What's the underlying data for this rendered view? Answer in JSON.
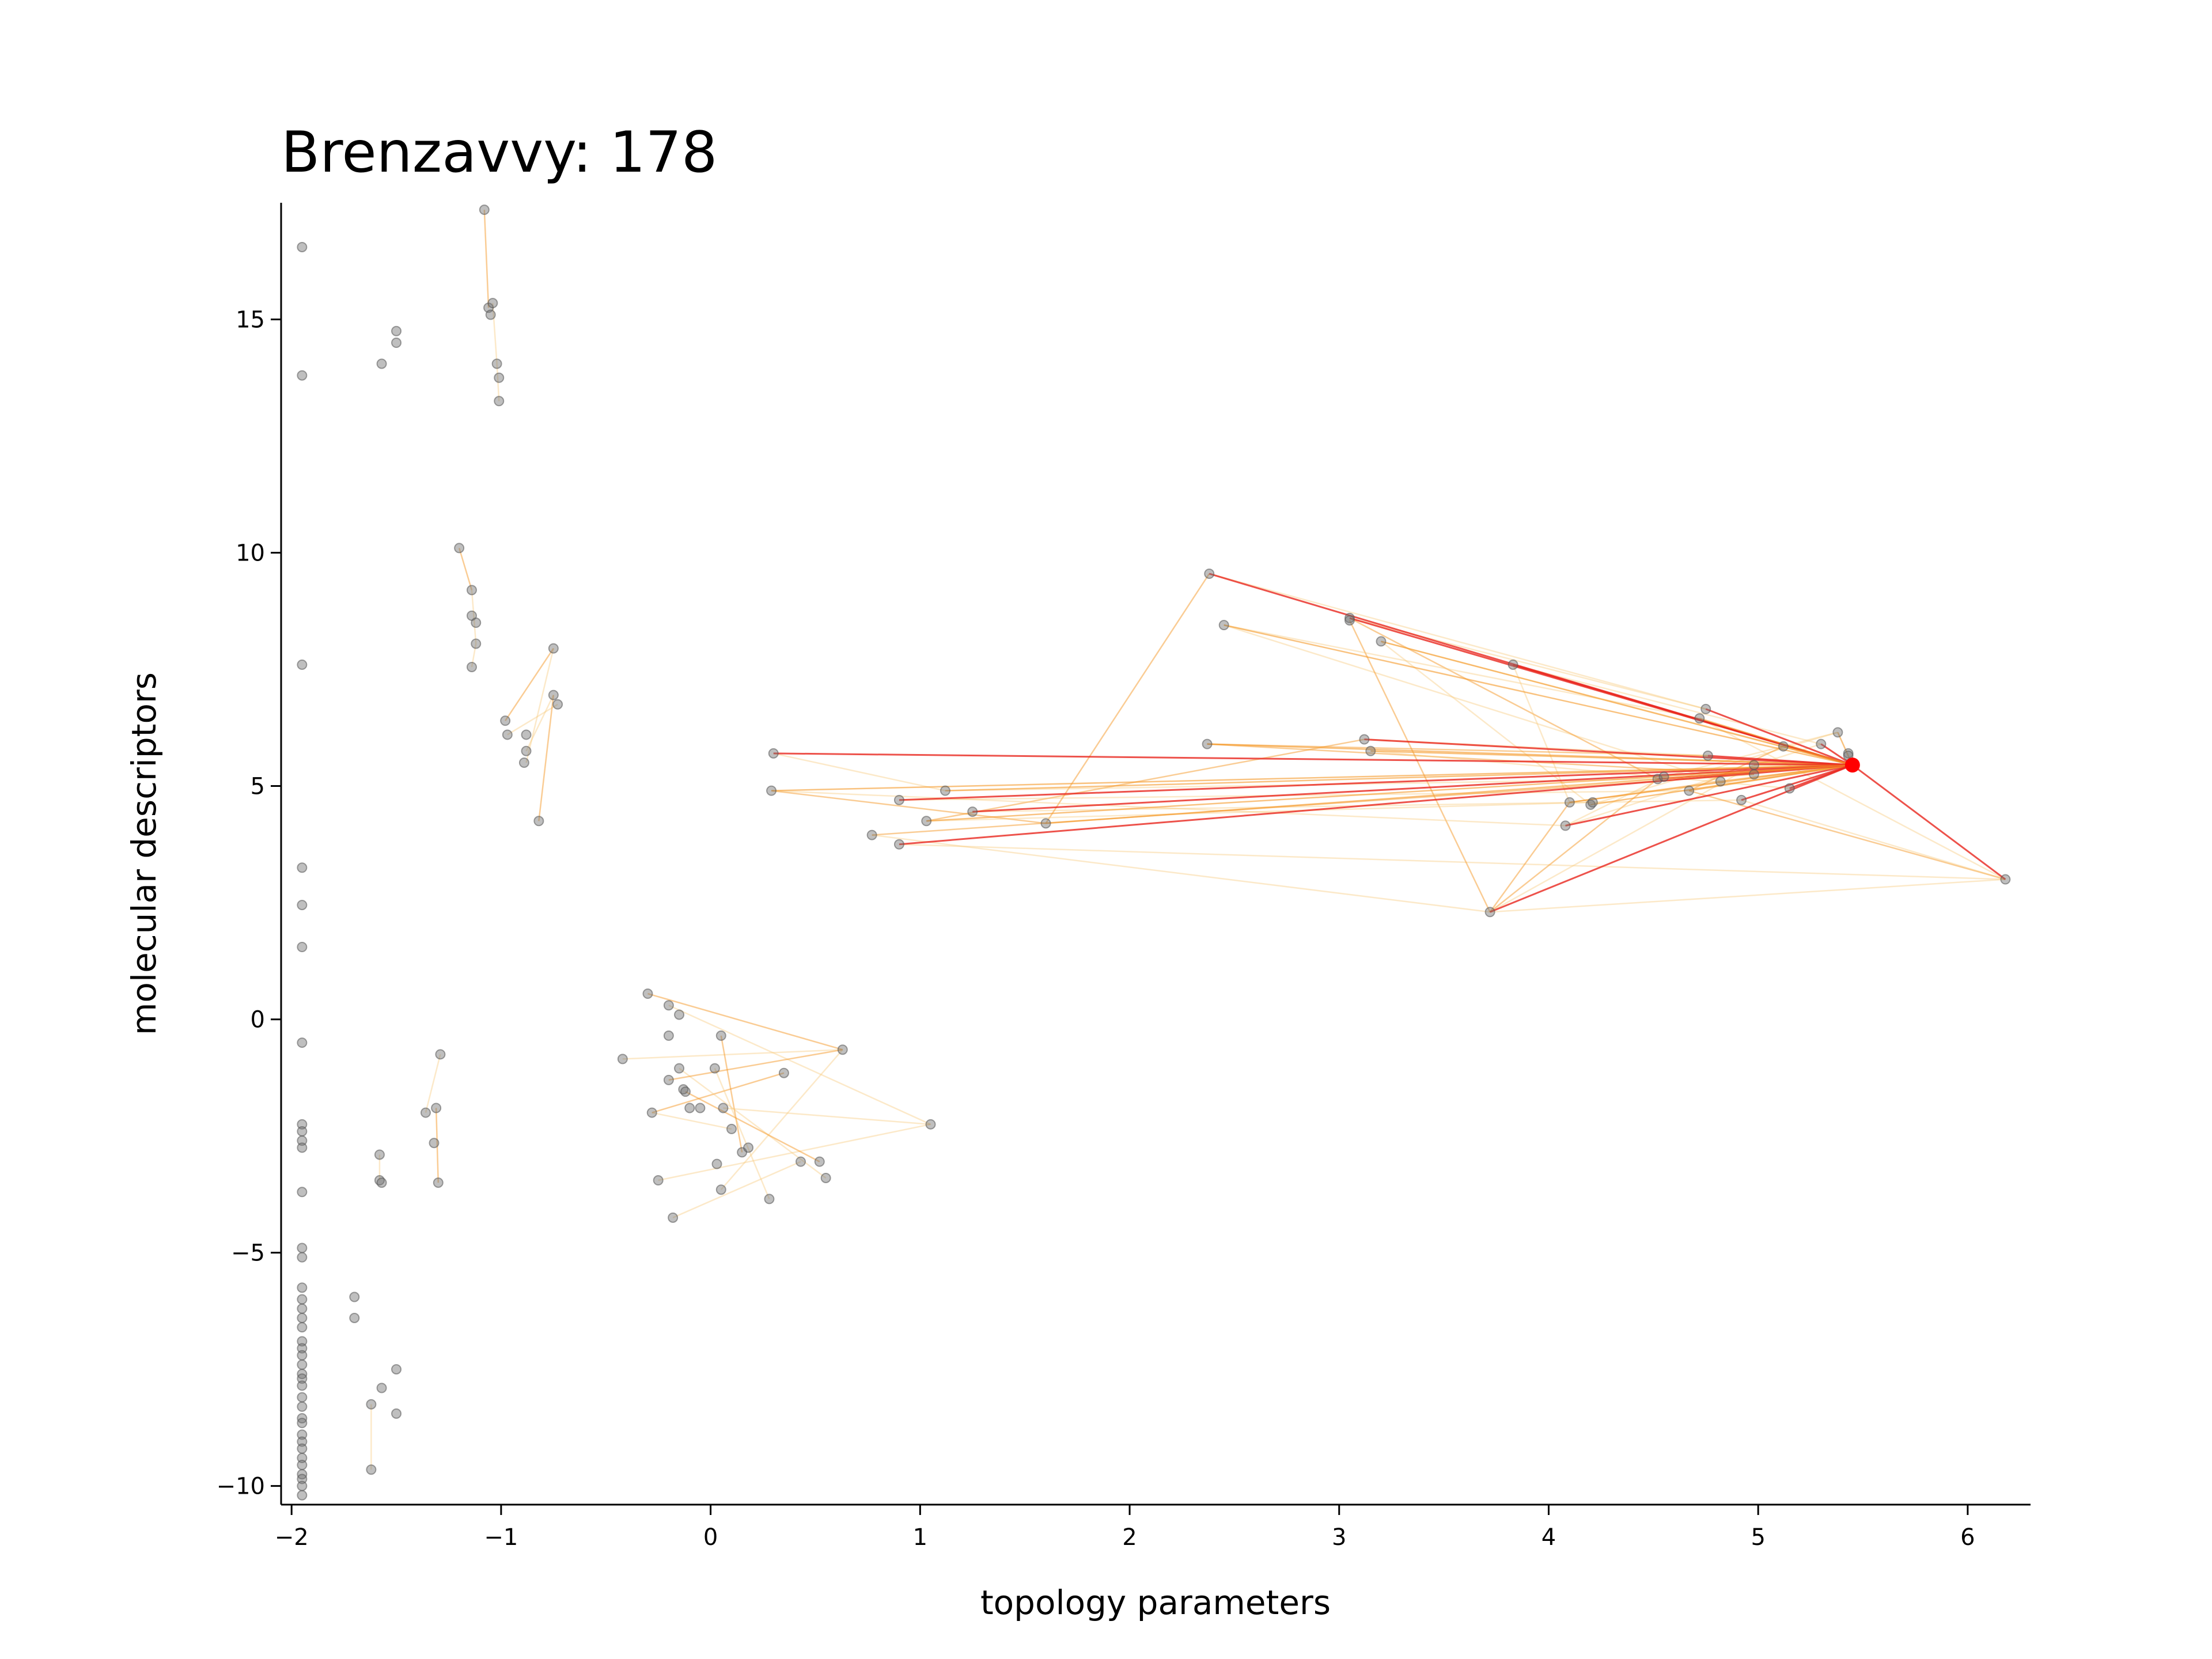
{
  "chart_data": {
    "type": "scatter",
    "title": "Brenzavvy: 178",
    "xlabel": "topology parameters",
    "ylabel": "molecular descriptors",
    "xlim": [
      -2.05,
      6.3
    ],
    "ylim": [
      -10.4,
      17.5
    ],
    "xticks": [
      {
        "value": -2,
        "label": "−2"
      },
      {
        "value": -1,
        "label": "−1"
      },
      {
        "value": 0,
        "label": "0"
      },
      {
        "value": 1,
        "label": "1"
      },
      {
        "value": 2,
        "label": "2"
      },
      {
        "value": 3,
        "label": "3"
      },
      {
        "value": 4,
        "label": "4"
      },
      {
        "value": 5,
        "label": "5"
      },
      {
        "value": 6,
        "label": "6"
      }
    ],
    "yticks": [
      {
        "value": -10,
        "label": "−10"
      },
      {
        "value": -5,
        "label": "−5"
      },
      {
        "value": 0,
        "label": "0"
      },
      {
        "value": 5,
        "label": "5"
      },
      {
        "value": 10,
        "label": "10"
      },
      {
        "value": 15,
        "label": "15"
      }
    ],
    "grid": false,
    "colors": {
      "point": "#707070",
      "highlight": "#ff0000",
      "edge_strong": "#e8271e",
      "edge_mid": "#f59a2a",
      "edge_weak": "#f7c878"
    },
    "highlight": {
      "x": 5.45,
      "y": 5.45
    },
    "points": [
      [
        -1.95,
        16.55
      ],
      [
        -1.95,
        13.8
      ],
      [
        -1.95,
        7.6
      ],
      [
        -1.95,
        3.25
      ],
      [
        -1.95,
        2.45
      ],
      [
        -1.95,
        1.55
      ],
      [
        -1.95,
        -0.5
      ],
      [
        -1.95,
        -2.25
      ],
      [
        -1.95,
        -2.4
      ],
      [
        -1.95,
        -2.6
      ],
      [
        -1.95,
        -2.75
      ],
      [
        -1.95,
        -3.7
      ],
      [
        -1.95,
        -4.9
      ],
      [
        -1.95,
        -5.1
      ],
      [
        -1.95,
        -5.75
      ],
      [
        -1.95,
        -6.0
      ],
      [
        -1.95,
        -6.2
      ],
      [
        -1.95,
        -6.4
      ],
      [
        -1.95,
        -6.6
      ],
      [
        -1.95,
        -6.9
      ],
      [
        -1.95,
        -7.05
      ],
      [
        -1.95,
        -7.2
      ],
      [
        -1.95,
        -7.4
      ],
      [
        -1.95,
        -7.6
      ],
      [
        -1.95,
        -7.7
      ],
      [
        -1.95,
        -7.85
      ],
      [
        -1.95,
        -8.1
      ],
      [
        -1.95,
        -8.3
      ],
      [
        -1.95,
        -8.55
      ],
      [
        -1.95,
        -8.65
      ],
      [
        -1.95,
        -8.9
      ],
      [
        -1.95,
        -9.05
      ],
      [
        -1.95,
        -9.2
      ],
      [
        -1.95,
        -9.4
      ],
      [
        -1.95,
        -9.55
      ],
      [
        -1.95,
        -9.75
      ],
      [
        -1.95,
        -9.85
      ],
      [
        -1.95,
        -10.0
      ],
      [
        -1.95,
        -10.2
      ],
      [
        -1.57,
        14.05
      ],
      [
        -1.5,
        14.5
      ],
      [
        -1.5,
        14.75
      ],
      [
        -1.08,
        17.35
      ],
      [
        -1.06,
        15.25
      ],
      [
        -1.04,
        15.35
      ],
      [
        -1.05,
        15.1
      ],
      [
        -1.02,
        14.05
      ],
      [
        -1.01,
        13.75
      ],
      [
        -1.01,
        13.25
      ],
      [
        -1.2,
        10.1
      ],
      [
        -1.14,
        9.2
      ],
      [
        -1.14,
        8.65
      ],
      [
        -1.12,
        8.5
      ],
      [
        -1.12,
        8.05
      ],
      [
        -1.14,
        7.55
      ],
      [
        -0.98,
        6.4
      ],
      [
        -0.97,
        6.1
      ],
      [
        -0.88,
        6.1
      ],
      [
        -0.88,
        5.75
      ],
      [
        -0.89,
        5.5
      ],
      [
        -0.75,
        7.95
      ],
      [
        -0.75,
        6.95
      ],
      [
        -0.73,
        6.75
      ],
      [
        -0.82,
        4.25
      ],
      [
        -1.29,
        -0.75
      ],
      [
        -1.31,
        -1.9
      ],
      [
        -1.36,
        -2.0
      ],
      [
        -1.32,
        -2.65
      ],
      [
        -1.3,
        -3.5
      ],
      [
        -1.58,
        -2.9
      ],
      [
        -1.58,
        -3.45
      ],
      [
        -1.57,
        -3.5
      ],
      [
        -1.7,
        -5.95
      ],
      [
        -1.7,
        -6.4
      ],
      [
        -1.5,
        -7.5
      ],
      [
        -1.57,
        -7.9
      ],
      [
        -1.62,
        -8.25
      ],
      [
        -1.5,
        -8.45
      ],
      [
        -1.62,
        -9.65
      ],
      [
        -0.3,
        0.55
      ],
      [
        -0.2,
        0.3
      ],
      [
        -0.15,
        0.1
      ],
      [
        -0.2,
        -0.35
      ],
      [
        0.05,
        -0.35
      ],
      [
        -0.42,
        -0.85
      ],
      [
        -0.15,
        -1.05
      ],
      [
        0.02,
        -1.05
      ],
      [
        -0.2,
        -1.3
      ],
      [
        -0.13,
        -1.5
      ],
      [
        -0.12,
        -1.55
      ],
      [
        -0.28,
        -2.0
      ],
      [
        -0.1,
        -1.9
      ],
      [
        -0.05,
        -1.9
      ],
      [
        0.06,
        -1.9
      ],
      [
        0.1,
        -2.35
      ],
      [
        0.15,
        -2.85
      ],
      [
        0.18,
        -2.75
      ],
      [
        0.03,
        -3.1
      ],
      [
        0.43,
        -3.05
      ],
      [
        0.52,
        -3.05
      ],
      [
        0.55,
        -3.4
      ],
      [
        0.05,
        -3.65
      ],
      [
        0.28,
        -3.85
      ],
      [
        -0.25,
        -3.45
      ],
      [
        -0.18,
        -4.25
      ],
      [
        0.35,
        -1.15
      ],
      [
        0.63,
        -0.65
      ],
      [
        1.05,
        -2.25
      ],
      [
        0.3,
        5.7
      ],
      [
        0.29,
        4.9
      ],
      [
        0.9,
        4.7
      ],
      [
        1.12,
        4.9
      ],
      [
        1.25,
        4.45
      ],
      [
        1.03,
        4.25
      ],
      [
        0.77,
        3.95
      ],
      [
        0.9,
        3.75
      ],
      [
        1.6,
        4.2
      ],
      [
        2.38,
        9.55
      ],
      [
        2.45,
        8.45
      ],
      [
        3.05,
        8.6
      ],
      [
        3.05,
        8.55
      ],
      [
        3.2,
        8.1
      ],
      [
        3.83,
        7.6
      ],
      [
        2.37,
        5.9
      ],
      [
        3.12,
        6.0
      ],
      [
        3.15,
        5.75
      ],
      [
        3.72,
        2.3
      ],
      [
        4.1,
        4.65
      ],
      [
        4.08,
        4.15
      ],
      [
        4.2,
        4.6
      ],
      [
        4.21,
        4.65
      ],
      [
        4.52,
        5.15
      ],
      [
        4.55,
        5.2
      ],
      [
        4.67,
        4.9
      ],
      [
        4.75,
        6.65
      ],
      [
        4.72,
        6.45
      ],
      [
        4.76,
        5.65
      ],
      [
        4.82,
        5.1
      ],
      [
        4.92,
        4.7
      ],
      [
        4.98,
        5.45
      ],
      [
        4.98,
        5.25
      ],
      [
        5.15,
        4.95
      ],
      [
        5.12,
        5.85
      ],
      [
        5.3,
        5.9
      ],
      [
        5.38,
        6.15
      ],
      [
        5.43,
        5.7
      ],
      [
        5.43,
        5.65
      ],
      [
        6.18,
        3.0
      ]
    ],
    "edges_from_highlight": [
      [
        2.38,
        9.55
      ],
      [
        2.45,
        8.45
      ],
      [
        3.05,
        8.6
      ],
      [
        3.2,
        8.1
      ],
      [
        3.83,
        7.6
      ],
      [
        2.37,
        5.9
      ],
      [
        3.12,
        6.0
      ],
      [
        3.15,
        5.75
      ],
      [
        3.72,
        2.3
      ],
      [
        4.1,
        4.65
      ],
      [
        4.08,
        4.15
      ],
      [
        4.2,
        4.6
      ],
      [
        4.52,
        5.15
      ],
      [
        4.67,
        4.9
      ],
      [
        4.75,
        6.65
      ],
      [
        4.72,
        6.45
      ],
      [
        4.76,
        5.65
      ],
      [
        4.82,
        5.1
      ],
      [
        4.92,
        4.7
      ],
      [
        4.98,
        5.45
      ],
      [
        5.15,
        4.95
      ],
      [
        5.12,
        5.85
      ],
      [
        5.3,
        5.9
      ],
      [
        5.38,
        6.15
      ],
      [
        0.3,
        5.7
      ],
      [
        0.29,
        4.9
      ],
      [
        0.9,
        4.7
      ],
      [
        1.12,
        4.9
      ],
      [
        1.25,
        4.45
      ],
      [
        1.03,
        4.25
      ],
      [
        0.9,
        3.75
      ],
      [
        1.6,
        4.2
      ],
      [
        6.18,
        3.0
      ]
    ],
    "edges_other": [
      [
        [
          -1.08,
          17.35
        ],
        [
          -1.06,
          15.25
        ]
      ],
      [
        [
          -1.04,
          15.35
        ],
        [
          -1.02,
          14.05
        ]
      ],
      [
        [
          -1.02,
          14.05
        ],
        [
          -1.01,
          13.25
        ]
      ],
      [
        [
          -1.2,
          10.1
        ],
        [
          -1.14,
          9.2
        ]
      ],
      [
        [
          -1.14,
          9.2
        ],
        [
          -1.12,
          8.05
        ]
      ],
      [
        [
          -1.12,
          8.05
        ],
        [
          -1.14,
          7.55
        ]
      ],
      [
        [
          -0.98,
          6.4
        ],
        [
          -0.75,
          7.95
        ]
      ],
      [
        [
          -0.88,
          5.5
        ],
        [
          -0.75,
          7.95
        ]
      ],
      [
        [
          -0.97,
          6.1
        ],
        [
          -0.73,
          6.75
        ]
      ],
      [
        [
          -0.82,
          4.25
        ],
        [
          -0.75,
          6.95
        ]
      ],
      [
        [
          -0.88,
          5.75
        ],
        [
          -0.75,
          6.95
        ]
      ],
      [
        [
          -1.29,
          -0.75
        ],
        [
          -1.36,
          -2.0
        ]
      ],
      [
        [
          -1.31,
          -1.9
        ],
        [
          -1.3,
          -3.5
        ]
      ],
      [
        [
          -1.58,
          -2.9
        ],
        [
          -1.58,
          -3.45
        ]
      ],
      [
        [
          -1.62,
          -8.25
        ],
        [
          -1.62,
          -9.65
        ]
      ],
      [
        [
          -0.3,
          0.55
        ],
        [
          0.63,
          -0.65
        ]
      ],
      [
        [
          -0.2,
          0.3
        ],
        [
          1.05,
          -2.25
        ]
      ],
      [
        [
          -0.42,
          -0.85
        ],
        [
          0.63,
          -0.65
        ]
      ],
      [
        [
          -0.28,
          -2.0
        ],
        [
          0.35,
          -1.15
        ]
      ],
      [
        [
          -0.25,
          -3.45
        ],
        [
          1.05,
          -2.25
        ]
      ],
      [
        [
          -0.18,
          -4.25
        ],
        [
          0.43,
          -3.05
        ]
      ],
      [
        [
          0.05,
          -0.35
        ],
        [
          0.15,
          -2.85
        ]
      ],
      [
        [
          -0.15,
          -1.05
        ],
        [
          0.55,
          -3.4
        ]
      ],
      [
        [
          0.02,
          -1.05
        ],
        [
          0.28,
          -3.85
        ]
      ],
      [
        [
          -0.2,
          -1.3
        ],
        [
          0.63,
          -0.65
        ]
      ],
      [
        [
          0.06,
          -1.9
        ],
        [
          1.05,
          -2.25
        ]
      ],
      [
        [
          0.05,
          -3.65
        ],
        [
          0.63,
          -0.65
        ]
      ],
      [
        [
          -0.12,
          -1.55
        ],
        [
          0.52,
          -3.05
        ]
      ],
      [
        [
          0.1,
          -2.35
        ],
        [
          -0.28,
          -2.0
        ]
      ],
      [
        [
          0.3,
          5.7
        ],
        [
          1.12,
          4.9
        ]
      ],
      [
        [
          0.29,
          4.9
        ],
        [
          1.6,
          4.2
        ]
      ],
      [
        [
          0.77,
          3.95
        ],
        [
          3.72,
          2.3
        ]
      ],
      [
        [
          0.9,
          3.75
        ],
        [
          6.18,
          3.0
        ]
      ],
      [
        [
          1.03,
          4.25
        ],
        [
          3.12,
          6.0
        ]
      ],
      [
        [
          0.9,
          4.7
        ],
        [
          4.67,
          4.9
        ]
      ],
      [
        [
          1.25,
          4.45
        ],
        [
          4.92,
          4.7
        ]
      ],
      [
        [
          1.6,
          4.2
        ],
        [
          2.38,
          9.55
        ]
      ],
      [
        [
          2.38,
          9.55
        ],
        [
          4.75,
          6.65
        ]
      ],
      [
        [
          2.45,
          8.45
        ],
        [
          4.82,
          5.1
        ]
      ],
      [
        [
          3.05,
          8.6
        ],
        [
          4.52,
          5.15
        ]
      ],
      [
        [
          3.2,
          8.1
        ],
        [
          4.2,
          4.6
        ]
      ],
      [
        [
          3.83,
          7.6
        ],
        [
          4.1,
          4.65
        ]
      ],
      [
        [
          2.37,
          5.9
        ],
        [
          4.98,
          5.25
        ]
      ],
      [
        [
          3.12,
          6.0
        ],
        [
          4.76,
          5.65
        ]
      ],
      [
        [
          3.15,
          5.75
        ],
        [
          5.15,
          4.95
        ]
      ],
      [
        [
          3.72,
          2.3
        ],
        [
          4.52,
          5.15
        ]
      ],
      [
        [
          3.72,
          2.3
        ],
        [
          4.98,
          5.45
        ]
      ],
      [
        [
          3.72,
          2.3
        ],
        [
          6.18,
          3.0
        ]
      ],
      [
        [
          3.72,
          2.3
        ],
        [
          4.1,
          4.65
        ]
      ],
      [
        [
          4.08,
          4.15
        ],
        [
          5.3,
          5.9
        ]
      ],
      [
        [
          4.2,
          4.6
        ],
        [
          5.38,
          6.15
        ]
      ],
      [
        [
          4.67,
          4.9
        ],
        [
          6.18,
          3.0
        ]
      ],
      [
        [
          4.72,
          6.45
        ],
        [
          6.18,
          3.0
        ]
      ],
      [
        [
          4.92,
          4.7
        ],
        [
          6.18,
          3.0
        ]
      ],
      [
        [
          3.05,
          8.55
        ],
        [
          3.72,
          2.3
        ]
      ],
      [
        [
          2.45,
          8.45
        ],
        [
          4.72,
          6.45
        ]
      ],
      [
        [
          3.2,
          8.1
        ],
        [
          5.12,
          5.85
        ]
      ],
      [
        [
          2.37,
          5.9
        ],
        [
          4.76,
          5.65
        ]
      ],
      [
        [
          3.83,
          7.6
        ],
        [
          5.3,
          5.9
        ]
      ],
      [
        [
          3.05,
          8.6
        ],
        [
          4.75,
          6.65
        ]
      ],
      [
        [
          4.1,
          4.65
        ],
        [
          4.82,
          5.1
        ]
      ],
      [
        [
          4.08,
          4.15
        ],
        [
          4.55,
          5.2
        ]
      ],
      [
        [
          4.55,
          5.2
        ],
        [
          5.38,
          6.15
        ]
      ],
      [
        [
          4.67,
          4.9
        ],
        [
          5.12,
          5.85
        ]
      ],
      [
        [
          1.12,
          4.9
        ],
        [
          4.52,
          5.15
        ]
      ],
      [
        [
          0.29,
          4.9
        ],
        [
          4.08,
          4.15
        ]
      ],
      [
        [
          0.77,
          3.95
        ],
        [
          4.98,
          5.25
        ]
      ],
      [
        [
          1.03,
          4.25
        ],
        [
          4.2,
          4.65
        ]
      ]
    ]
  }
}
